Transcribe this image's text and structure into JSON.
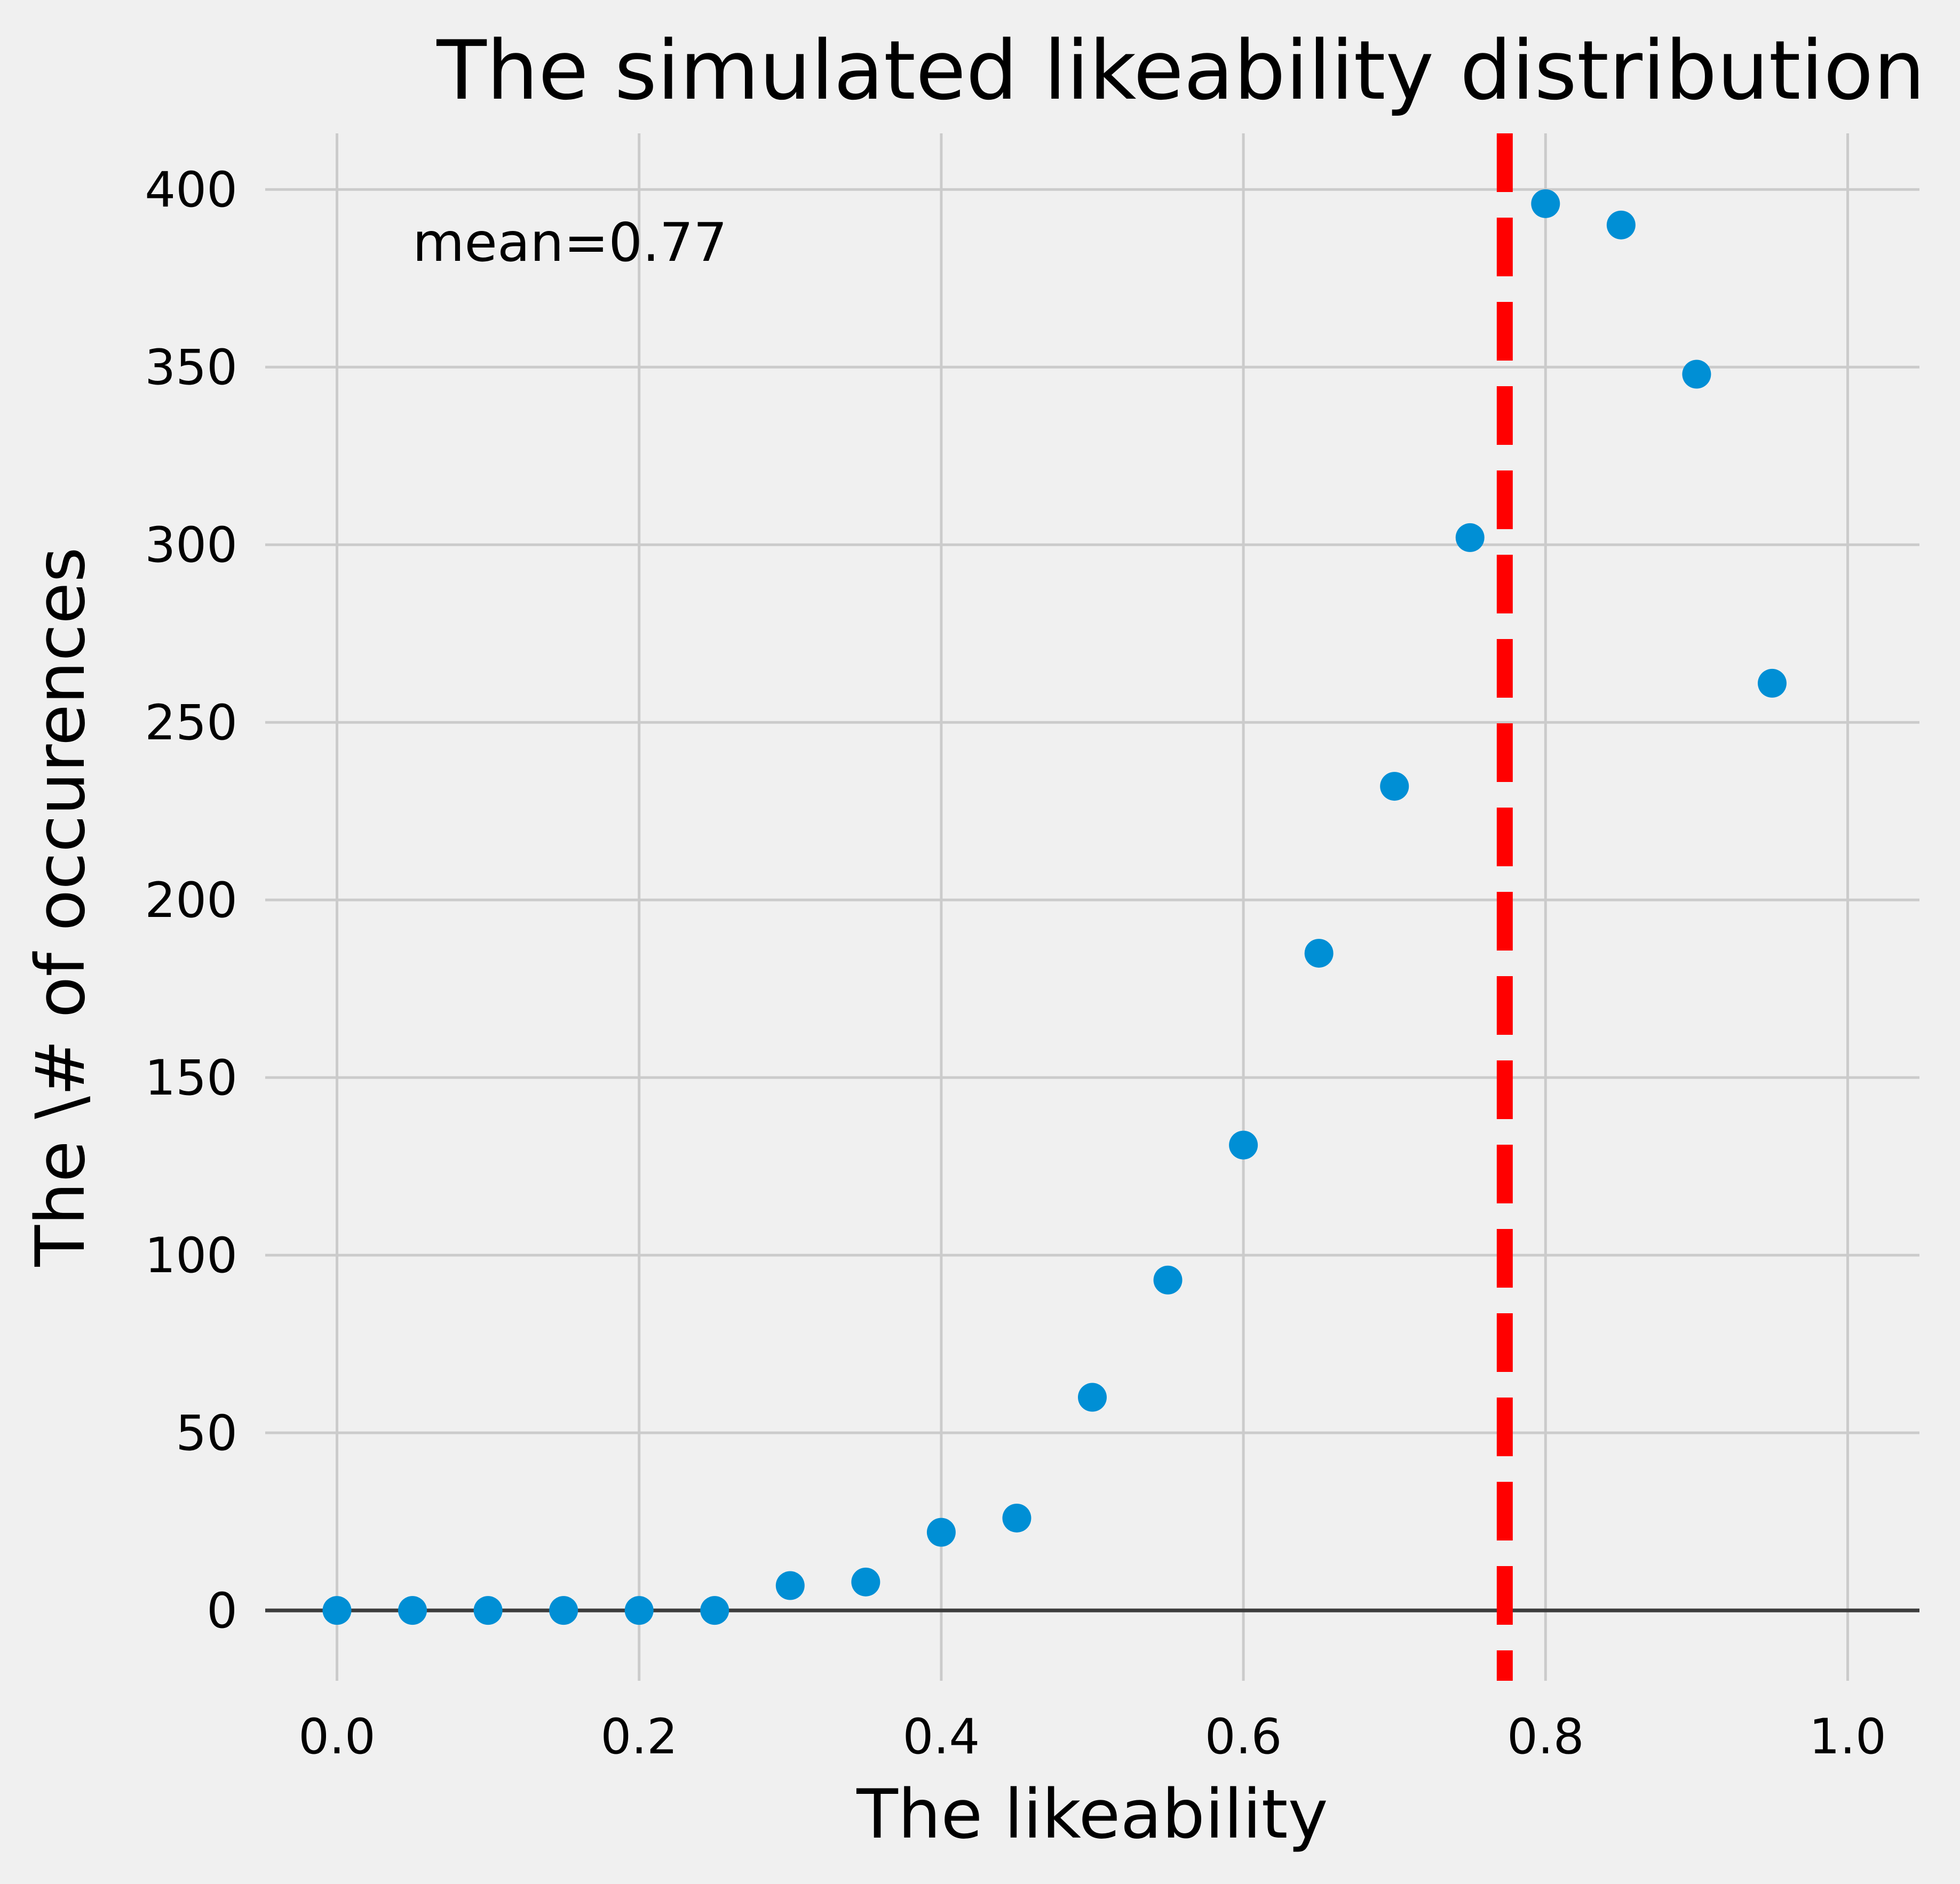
{
  "chart_data": {
    "type": "scatter",
    "title": "The simulated likeability distribution",
    "xlabel": "The likeability",
    "ylabel": "The \\# of occurences",
    "xlim": [
      -0.0475,
      1.0475
    ],
    "ylim": [
      -19.8,
      415.8
    ],
    "x_ticks": [
      0.0,
      0.2,
      0.4,
      0.6,
      0.8,
      1.0
    ],
    "x_tick_labels": [
      "0.0",
      "0.2",
      "0.4",
      "0.6",
      "0.8",
      "1.0"
    ],
    "y_ticks": [
      0,
      50,
      100,
      150,
      200,
      250,
      300,
      350,
      400
    ],
    "y_tick_labels": [
      "0",
      "50",
      "100",
      "150",
      "200",
      "250",
      "300",
      "350",
      "400"
    ],
    "grid": true,
    "series": [
      {
        "x": [
          0.0,
          0.05,
          0.1,
          0.15,
          0.2,
          0.25,
          0.3,
          0.35,
          0.4,
          0.45,
          0.5,
          0.55,
          0.6,
          0.65,
          0.7,
          0.75,
          0.8,
          0.85,
          0.9,
          0.95
        ],
        "y": [
          0,
          0,
          0,
          0,
          0,
          0,
          7,
          8,
          22,
          26,
          60,
          93,
          131,
          185,
          232,
          302,
          396,
          390,
          348,
          261
        ],
        "color": "#008fd5"
      }
    ],
    "reference_lines": [
      {
        "orientation": "vertical",
        "x": 0.773,
        "style": "dashed",
        "color": "#ff0000"
      },
      {
        "orientation": "horizontal",
        "y": 0,
        "style": "solid",
        "color": "#3c3c3c"
      }
    ],
    "annotations": [
      {
        "text": "mean=0.77",
        "x": 0.05,
        "y": 385
      }
    ]
  },
  "colors": {
    "background": "#f0f0f0",
    "grid": "#cbcbcb",
    "points": "#008fd5",
    "mean_line": "#ff0000",
    "zero_line": "#3c3c3c"
  }
}
